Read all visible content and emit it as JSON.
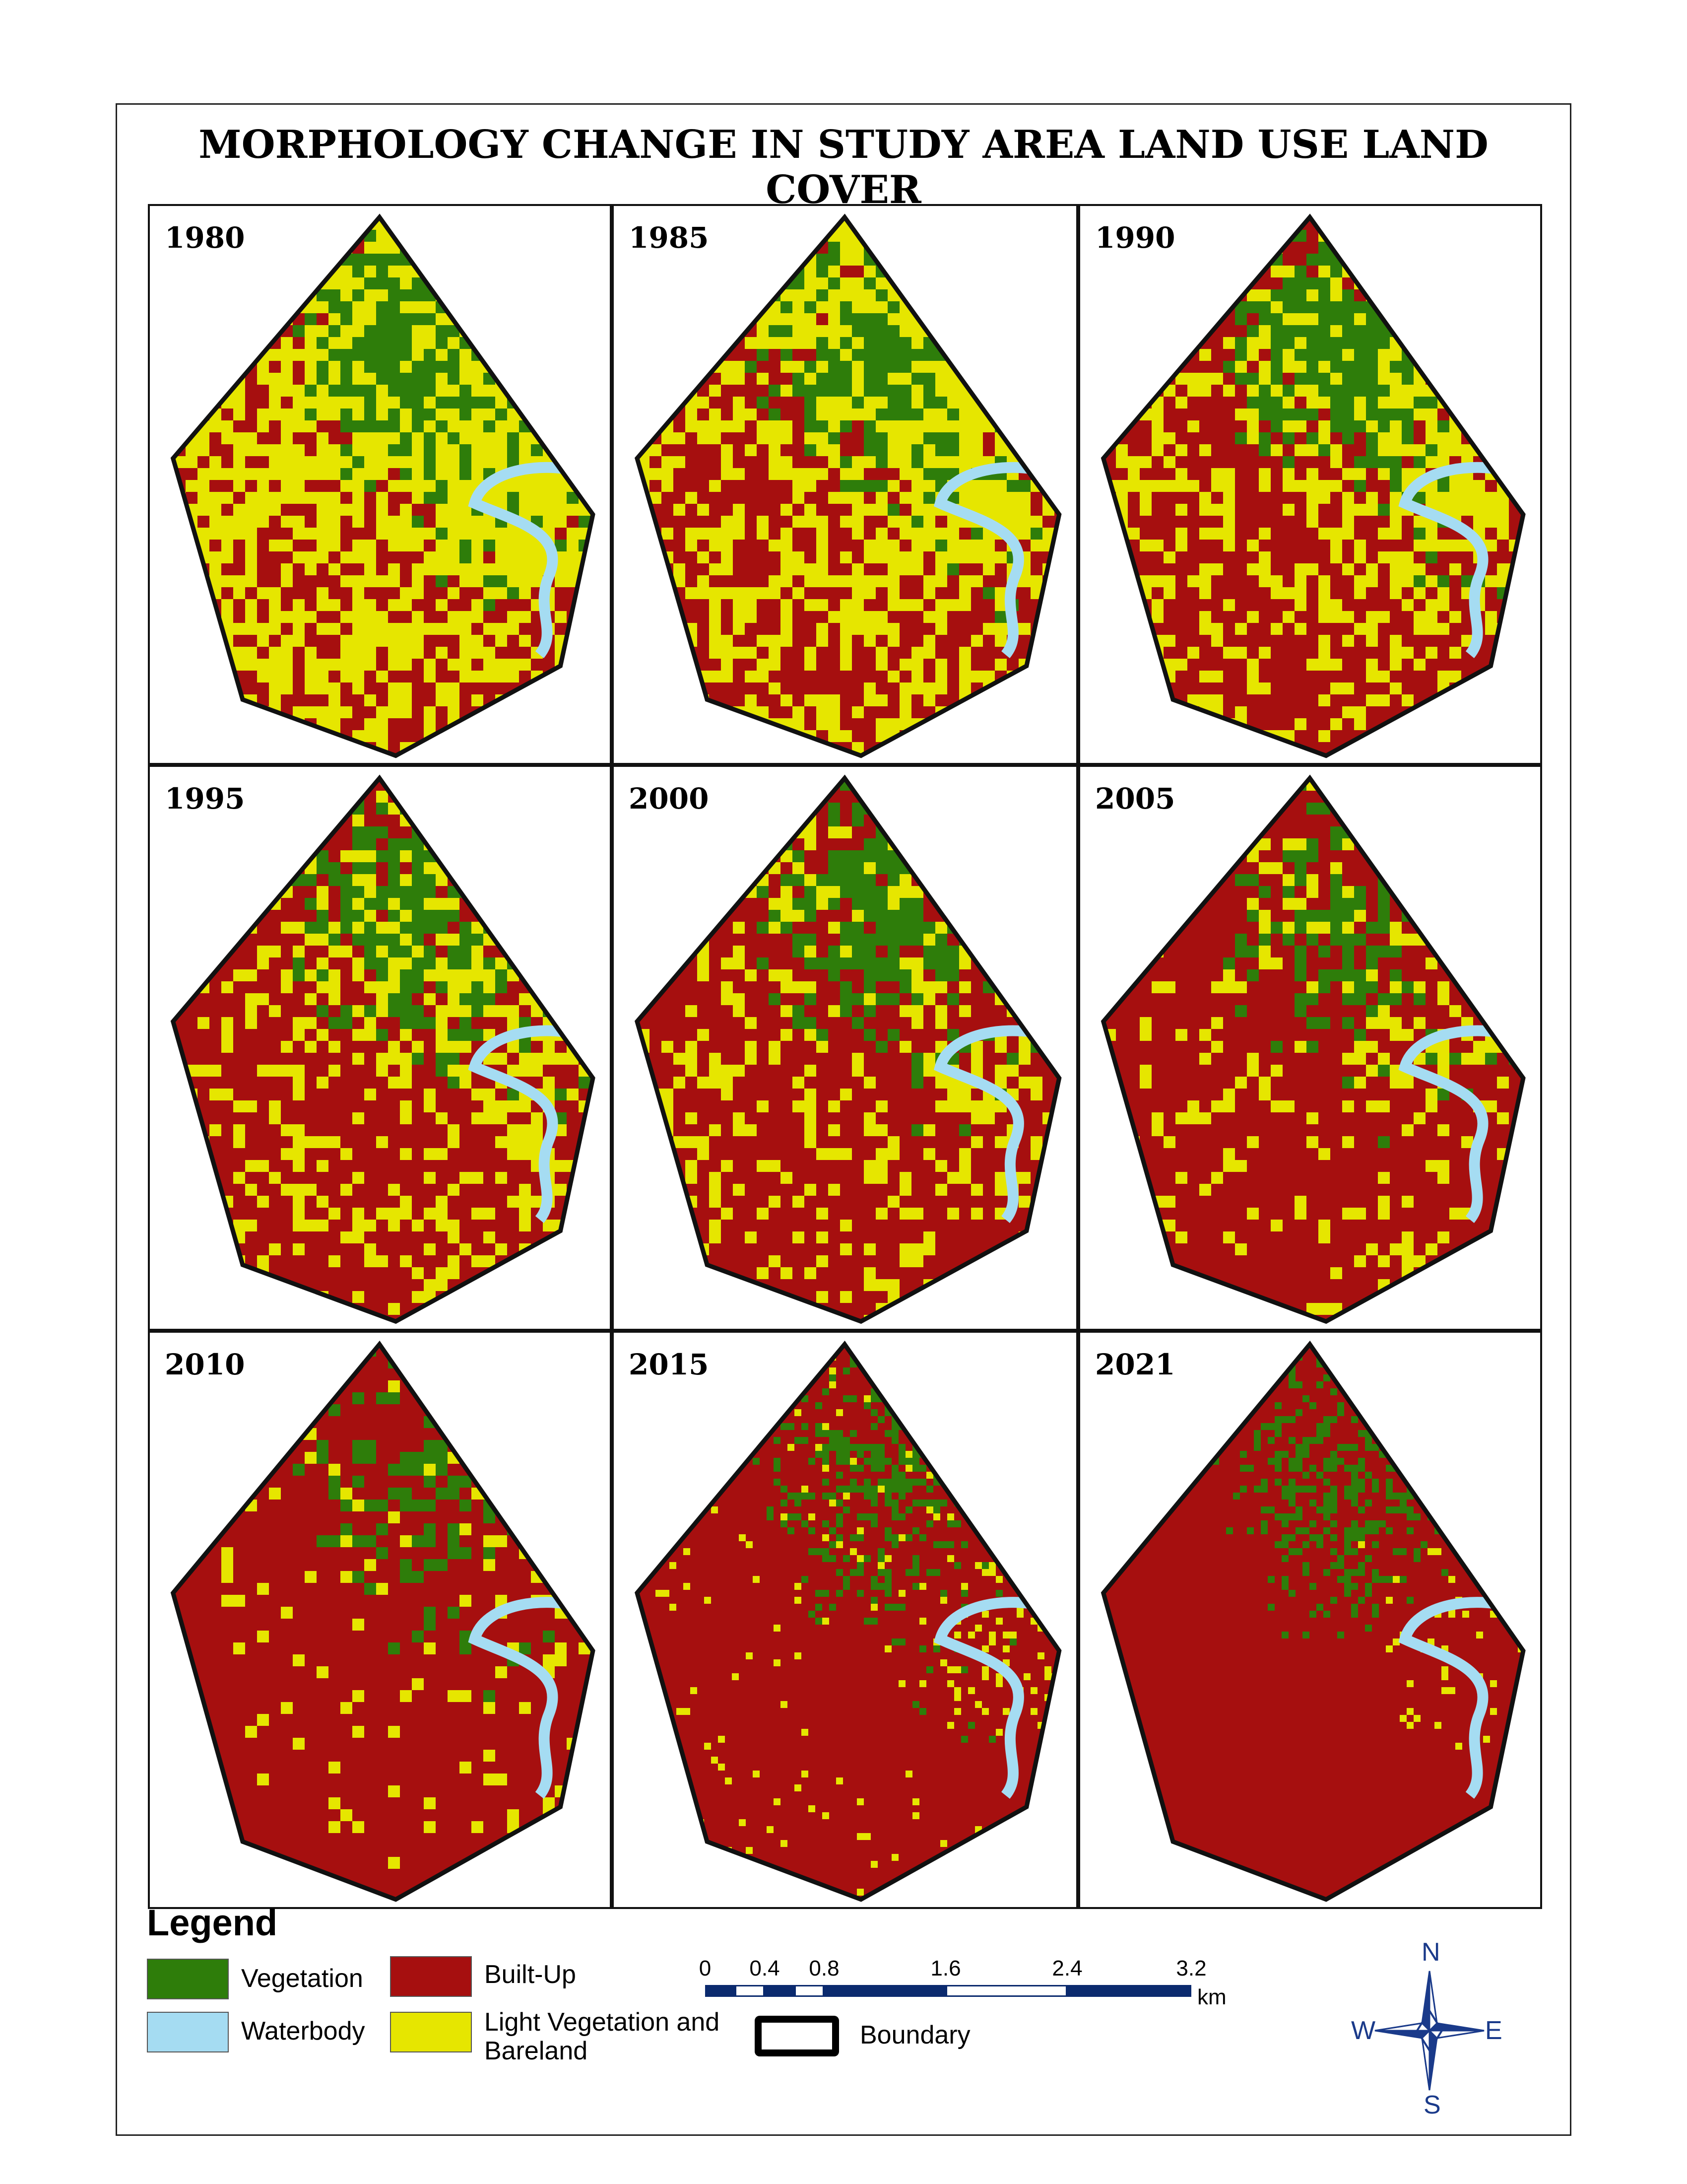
{
  "title": "MORPHOLOGY CHANGE IN STUDY AREA LAND USE LAND COVER",
  "colors": {
    "vegetation": "#2e7d0a",
    "builtup": "#a60f0f",
    "light_veg": "#e6e600",
    "water": "#a5dcf2",
    "boundary": "#111111",
    "scale_dark": "#0b2a6e"
  },
  "panels": [
    {
      "year": "1980"
    },
    {
      "year": "1985"
    },
    {
      "year": "1990"
    },
    {
      "year": "1995"
    },
    {
      "year": "2000"
    },
    {
      "year": "2005"
    },
    {
      "year": "2010"
    },
    {
      "year": "2015"
    },
    {
      "year": "2021"
    }
  ],
  "legend": {
    "title": "Legend",
    "items": {
      "vegetation": "Vegetation",
      "builtup": "Built-Up",
      "waterbody": "Waterbody",
      "light_veg_line1": "Light Vegetation and",
      "light_veg_line2": "Bareland",
      "boundary": "Boundary"
    }
  },
  "scale_bar": {
    "ticks": [
      "0",
      "0.4",
      "0.8",
      "1.6",
      "2.4",
      "3.2"
    ],
    "unit": "km"
  },
  "north_arrow": {
    "n": "N",
    "s": "S",
    "e": "E",
    "w": "W"
  }
}
